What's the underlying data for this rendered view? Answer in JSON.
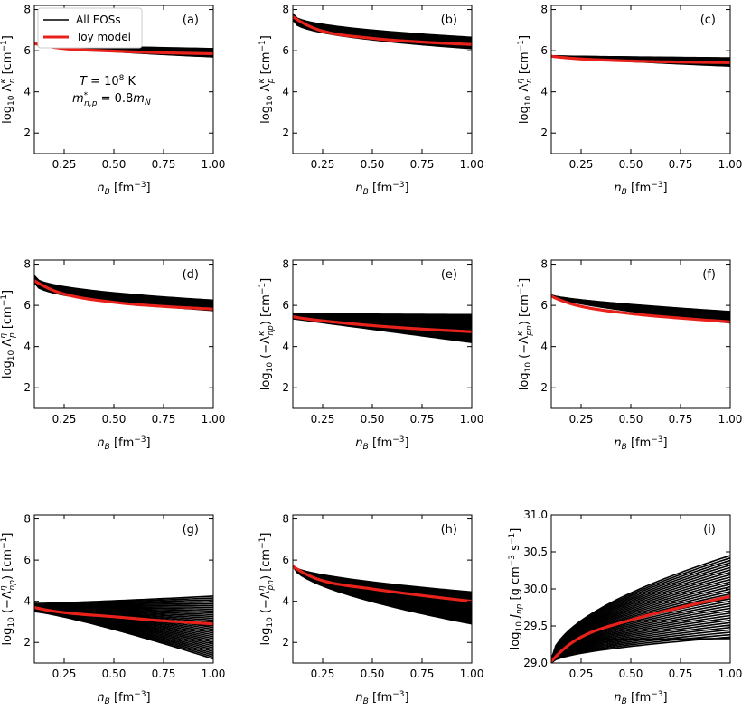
{
  "figure": {
    "legend": [
      {
        "label": "All EOSs",
        "color": "#000000"
      },
      {
        "label": "Toy model",
        "color": "#e8221b"
      }
    ],
    "annotation_lines": [
      "T = 10^8 K",
      "m*_{n,p} = 0.8m_N"
    ]
  },
  "chart_data": [
    {
      "type": "line",
      "panel": "(a)",
      "ylabel": "log10 Λ_n^κ [cm^-1]",
      "xlabel": "n_B [fm^-3]",
      "xlim": [
        0.1,
        1.0
      ],
      "ylim": [
        1.0,
        8.2
      ],
      "xticks": [
        0.25,
        0.5,
        0.75,
        1.0
      ],
      "yticks": [
        2,
        4,
        6,
        8
      ],
      "eos_band": {
        "start": [
          6.36,
          6.36
        ],
        "end": [
          5.7,
          6.1
        ],
        "exponent": 0.6,
        "count": 35
      },
      "toy_model": {
        "x": [
          0.1,
          0.25,
          0.5,
          0.75,
          1.0
        ],
        "y": [
          6.35,
          6.1,
          5.98,
          5.9,
          5.85
        ]
      }
    },
    {
      "type": "line",
      "panel": "(b)",
      "ylabel": "log10 Λ_p^κ [cm^-1]",
      "xlabel": "n_B [fm^-3]",
      "xlim": [
        0.1,
        1.0
      ],
      "ylim": [
        1.0,
        8.2
      ],
      "xticks": [
        0.25,
        0.5,
        0.75,
        1.0
      ],
      "yticks": [
        2,
        4,
        6,
        8
      ],
      "eos_band": {
        "start": [
          7.5,
          7.8
        ],
        "end": [
          6.1,
          6.65
        ],
        "exponent": 0.45,
        "count": 35
      },
      "toy_model": {
        "x": [
          0.1,
          0.25,
          0.5,
          0.75,
          1.0
        ],
        "y": [
          7.65,
          6.95,
          6.6,
          6.42,
          6.3
        ]
      }
    },
    {
      "type": "line",
      "panel": "(c)",
      "ylabel": "log10 Λ_n^η [cm^-1]",
      "xlabel": "n_B [fm^-3]",
      "xlim": [
        0.1,
        1.0
      ],
      "ylim": [
        1.0,
        8.2
      ],
      "xticks": [
        0.25,
        0.5,
        0.75,
        1.0
      ],
      "yticks": [
        2,
        4,
        6,
        8
      ],
      "eos_band": {
        "start": [
          5.72,
          5.75
        ],
        "end": [
          5.25,
          5.65
        ],
        "exponent": 0.8,
        "count": 35
      },
      "toy_model": {
        "x": [
          0.1,
          0.25,
          0.5,
          0.75,
          1.0
        ],
        "y": [
          5.73,
          5.6,
          5.5,
          5.45,
          5.42
        ]
      }
    },
    {
      "type": "line",
      "panel": "(d)",
      "ylabel": "log10 Λ_p^η [cm^-1]",
      "xlabel": "n_B [fm^-3]",
      "xlim": [
        0.1,
        1.0
      ],
      "ylim": [
        1.0,
        8.2
      ],
      "xticks": [
        0.25,
        0.5,
        0.75,
        1.0
      ],
      "yticks": [
        2,
        4,
        6,
        8
      ],
      "eos_band": {
        "start": [
          7.1,
          7.45
        ],
        "end": [
          5.75,
          6.25
        ],
        "exponent": 0.45,
        "count": 35
      },
      "toy_model": {
        "x": [
          0.1,
          0.25,
          0.5,
          0.75,
          1.0
        ],
        "y": [
          7.2,
          6.55,
          6.15,
          5.95,
          5.82
        ]
      }
    },
    {
      "type": "line",
      "panel": "(e)",
      "ylabel": "log10 (-Λ_np^κ) [cm^-1]",
      "xlabel": "n_B [fm^-3]",
      "xlim": [
        0.1,
        1.0
      ],
      "ylim": [
        1.0,
        8.2
      ],
      "xticks": [
        0.25,
        0.5,
        0.75,
        1.0
      ],
      "yticks": [
        2,
        4,
        6,
        8
      ],
      "eos_band": {
        "start": [
          5.35,
          5.6
        ],
        "end": [
          4.2,
          5.55
        ],
        "exponent": 1.0,
        "count": 35
      },
      "toy_model": {
        "x": [
          0.1,
          0.25,
          0.5,
          0.75,
          1.0
        ],
        "y": [
          5.45,
          5.25,
          5.02,
          4.85,
          4.72
        ]
      }
    },
    {
      "type": "line",
      "panel": "(f)",
      "ylabel": "log10 (-Λ_pn^κ) [cm^-1]",
      "xlabel": "n_B [fm^-3]",
      "xlim": [
        0.1,
        1.0
      ],
      "ylim": [
        1.0,
        8.2
      ],
      "xticks": [
        0.25,
        0.5,
        0.75,
        1.0
      ],
      "yticks": [
        2,
        4,
        6,
        8
      ],
      "eos_band": {
        "start": [
          6.45,
          6.5
        ],
        "end": [
          5.15,
          5.7
        ],
        "exponent": 0.7,
        "count": 35
      },
      "toy_model": {
        "x": [
          0.1,
          0.25,
          0.5,
          0.75,
          1.0
        ],
        "y": [
          6.45,
          5.95,
          5.6,
          5.38,
          5.2
        ]
      }
    },
    {
      "type": "line",
      "panel": "(g)",
      "ylabel": "log10 (-Λ_np^η) [cm^-1]",
      "xlabel": "n_B [fm^-3]",
      "xlim": [
        0.1,
        1.0
      ],
      "ylim": [
        1.0,
        8.2
      ],
      "xticks": [
        0.25,
        0.5,
        0.75,
        1.0
      ],
      "yticks": [
        2,
        4,
        6,
        8
      ],
      "eos_band": {
        "start": [
          3.5,
          3.9
        ],
        "end": [
          1.2,
          4.25
        ],
        "exponent": 1.2,
        "count": 35
      },
      "toy_model": {
        "x": [
          0.1,
          0.25,
          0.5,
          0.75,
          1.0
        ],
        "y": [
          3.7,
          3.45,
          3.25,
          3.05,
          2.9
        ]
      }
    },
    {
      "type": "line",
      "panel": "(h)",
      "ylabel": "log10 (-Λ_pn^η) [cm^-1]",
      "xlabel": "n_B [fm^-3]",
      "xlim": [
        0.1,
        1.0
      ],
      "ylim": [
        1.0,
        8.2
      ],
      "xticks": [
        0.25,
        0.5,
        0.75,
        1.0
      ],
      "yticks": [
        2,
        4,
        6,
        8
      ],
      "eos_band": {
        "start": [
          5.7,
          5.72
        ],
        "end": [
          2.9,
          4.45
        ],
        "exponent": 0.6,
        "count": 35
      },
      "toy_model": {
        "x": [
          0.1,
          0.25,
          0.5,
          0.75,
          1.0
        ],
        "y": [
          5.7,
          5.0,
          4.6,
          4.28,
          4.0
        ]
      }
    },
    {
      "type": "line",
      "panel": "(i)",
      "ylabel": "log10 J_np [g cm^-3 s^-1]",
      "xlabel": "n_B [fm^-3]",
      "xlim": [
        0.1,
        1.0
      ],
      "ylim": [
        29.0,
        31.0
      ],
      "xticks": [
        0.25,
        0.5,
        0.75,
        1.0
      ],
      "yticks": [
        29.0,
        29.5,
        30.0,
        30.5,
        31.0
      ],
      "eos_band": {
        "start": [
          29.0,
          29.05
        ],
        "end": [
          29.35,
          30.45
        ],
        "exponent": 0.55,
        "count": 35,
        "outlier": [
          0.1,
          29.05,
          0.25,
          29.3,
          1.0,
          29.33
        ]
      },
      "toy_model": {
        "x": [
          0.1,
          0.25,
          0.5,
          0.75,
          1.0
        ],
        "y": [
          29.02,
          29.35,
          29.58,
          29.75,
          29.9
        ]
      }
    }
  ]
}
